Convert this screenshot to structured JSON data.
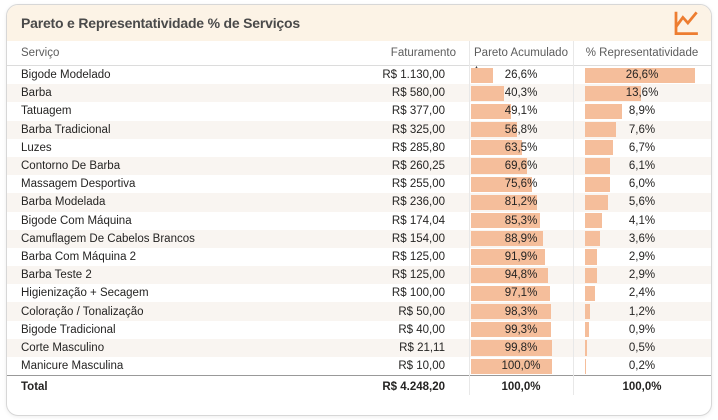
{
  "window": {
    "title": "Pareto e Representatividade % de Serviços",
    "corner_icon": "line-chart-icon"
  },
  "table": {
    "headers": {
      "service": "Serviço",
      "revenue": "Faturamento",
      "pareto": "Pareto Acumulado",
      "share": "% Representatividade"
    },
    "sort": {
      "column": "Pareto Acumulado",
      "direction": "asc",
      "indicator": "▲"
    }
  },
  "chart_data": {
    "type": "table",
    "title": "Pareto e Representatividade % de Serviços",
    "columns": [
      "Serviço",
      "Faturamento",
      "Pareto Acumulado",
      "% Representatividade"
    ],
    "rows": [
      {
        "service": "Bigode Modelado",
        "revenue": "R$ 1.130,00",
        "revenue_value": 1130.0,
        "pareto": "26,6%",
        "pareto_value": 26.6,
        "share": "26,6%",
        "share_value": 26.6
      },
      {
        "service": "Barba",
        "revenue": "R$ 580,00",
        "revenue_value": 580.0,
        "pareto": "40,3%",
        "pareto_value": 40.3,
        "share": "13,6%",
        "share_value": 13.6
      },
      {
        "service": "Tatuagem",
        "revenue": "R$ 377,00",
        "revenue_value": 377.0,
        "pareto": "49,1%",
        "pareto_value": 49.1,
        "share": "8,9%",
        "share_value": 8.9
      },
      {
        "service": "Barba Tradicional",
        "revenue": "R$ 325,00",
        "revenue_value": 325.0,
        "pareto": "56,8%",
        "pareto_value": 56.8,
        "share": "7,6%",
        "share_value": 7.6
      },
      {
        "service": "Luzes",
        "revenue": "R$ 285,80",
        "revenue_value": 285.8,
        "pareto": "63,5%",
        "pareto_value": 63.5,
        "share": "6,7%",
        "share_value": 6.7
      },
      {
        "service": "Contorno De Barba",
        "revenue": "R$ 260,25",
        "revenue_value": 260.25,
        "pareto": "69,6%",
        "pareto_value": 69.6,
        "share": "6,1%",
        "share_value": 6.1
      },
      {
        "service": "Massagem Desportiva",
        "revenue": "R$ 255,00",
        "revenue_value": 255.0,
        "pareto": "75,6%",
        "pareto_value": 75.6,
        "share": "6,0%",
        "share_value": 6.0
      },
      {
        "service": "Barba Modelada",
        "revenue": "R$ 236,00",
        "revenue_value": 236.0,
        "pareto": "81,2%",
        "pareto_value": 81.2,
        "share": "5,6%",
        "share_value": 5.6
      },
      {
        "service": "Bigode Com Máquina",
        "revenue": "R$ 174,04",
        "revenue_value": 174.04,
        "pareto": "85,3%",
        "pareto_value": 85.3,
        "share": "4,1%",
        "share_value": 4.1
      },
      {
        "service": "Camuflagem De Cabelos Brancos",
        "revenue": "R$ 154,00",
        "revenue_value": 154.0,
        "pareto": "88,9%",
        "pareto_value": 88.9,
        "share": "3,6%",
        "share_value": 3.6
      },
      {
        "service": "Barba Com Máquina 2",
        "revenue": "R$ 125,00",
        "revenue_value": 125.0,
        "pareto": "91,9%",
        "pareto_value": 91.9,
        "share": "2,9%",
        "share_value": 2.9
      },
      {
        "service": "Barba Teste 2",
        "revenue": "R$ 125,00",
        "revenue_value": 125.0,
        "pareto": "94,8%",
        "pareto_value": 94.8,
        "share": "2,9%",
        "share_value": 2.9
      },
      {
        "service": "Higienização + Secagem",
        "revenue": "R$ 100,00",
        "revenue_value": 100.0,
        "pareto": "97,1%",
        "pareto_value": 97.1,
        "share": "2,4%",
        "share_value": 2.4
      },
      {
        "service": "Coloração / Tonalização",
        "revenue": "R$ 50,00",
        "revenue_value": 50.0,
        "pareto": "98,3%",
        "pareto_value": 98.3,
        "share": "1,2%",
        "share_value": 1.2
      },
      {
        "service": "Bigode Tradicional",
        "revenue": "R$ 40,00",
        "revenue_value": 40.0,
        "pareto": "99,3%",
        "pareto_value": 99.3,
        "share": "0,9%",
        "share_value": 0.9
      },
      {
        "service": "Corte Masculino",
        "revenue": "R$ 21,11",
        "revenue_value": 21.11,
        "pareto": "99,8%",
        "pareto_value": 99.8,
        "share": "0,5%",
        "share_value": 0.5
      },
      {
        "service": "Manicure Masculina",
        "revenue": "R$ 10,00",
        "revenue_value": 10.0,
        "pareto": "100,0%",
        "pareto_value": 100.0,
        "share": "0,2%",
        "share_value": 0.2
      }
    ],
    "total": {
      "service": "Total",
      "revenue": "R$ 4.248,20",
      "revenue_value": 4248.2,
      "pareto": "100,0%",
      "share": "100,0%"
    },
    "data_bars": {
      "fill": "#F5BE9B",
      "pareto_axis_max": 100,
      "share_axis_max": 26.6
    },
    "layout": {
      "legend": false,
      "row_striping": true,
      "grid": "column-separators"
    }
  },
  "colors": {
    "accent_orange": "#ED7D31",
    "bar_fill": "#F5BE9B",
    "title_bg": "#FCF3E6",
    "title_text": "#4A4A4A",
    "header_text": "#5C5C5C",
    "cell_text": "#252423",
    "row_alt": "#F9F5F1",
    "card_border": "#D7D7D7",
    "total_divider": "#999999"
  }
}
